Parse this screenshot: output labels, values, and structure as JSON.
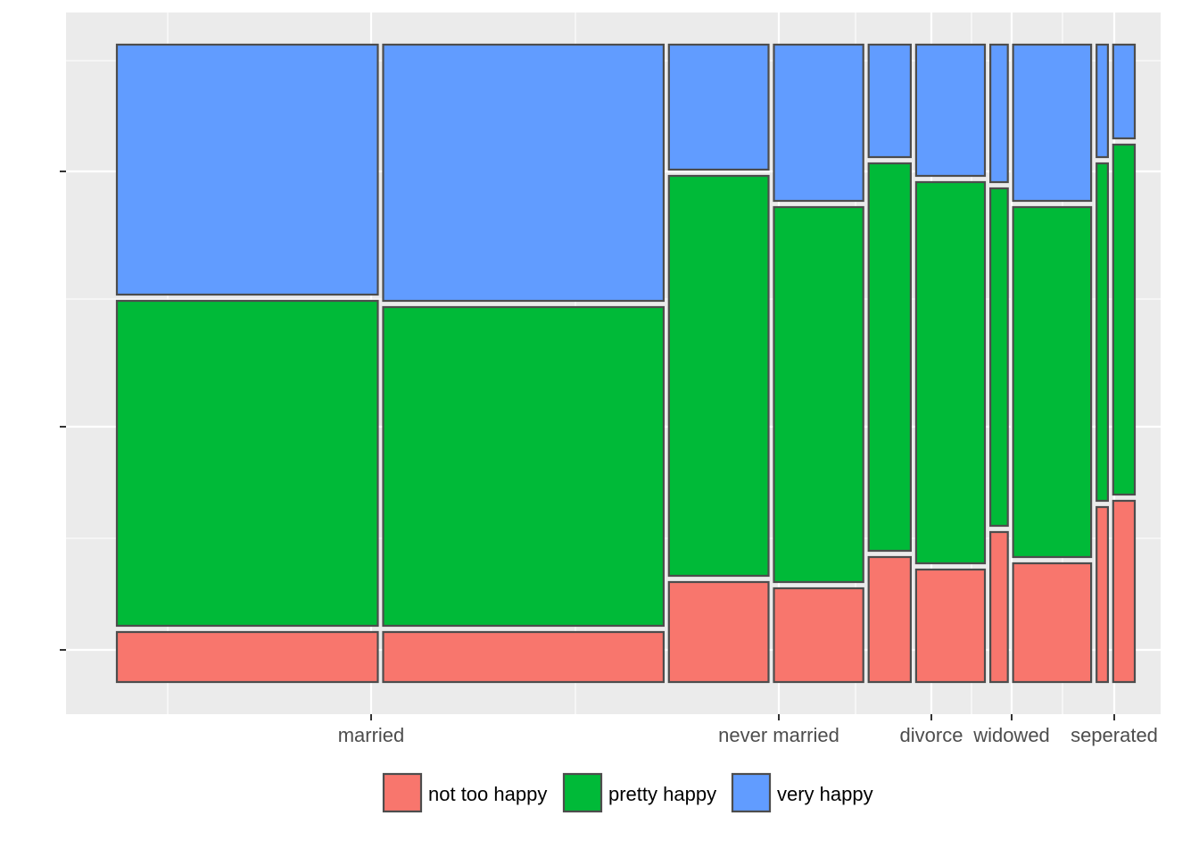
{
  "chart_data": {
    "type": "mosaic",
    "title": "",
    "xlabel": "",
    "ylabel": "",
    "x_tick_labels": [
      "married",
      "never married",
      "divorce",
      "widowed",
      "seperated"
    ],
    "y_tick_labels": [
      "",
      "",
      ""
    ],
    "grid": true,
    "legend_position": "bottom",
    "legend": [
      {
        "label": "not too happy",
        "color": "#F8766D"
      },
      {
        "label": "pretty happy",
        "color": "#00BA38"
      },
      {
        "label": "very happy",
        "color": "#619CFF"
      }
    ],
    "segments": [
      {
        "category": "married",
        "width_share": 0.254,
        "happiness": [
          0.08,
          0.52,
          0.4
        ]
      },
      {
        "category": "married",
        "width_share": 0.273,
        "happiness": [
          0.08,
          0.51,
          0.41
        ]
      },
      {
        "category": "never married",
        "width_share": 0.097,
        "happiness": [
          0.16,
          0.64,
          0.2
        ]
      },
      {
        "category": "never married",
        "width_share": 0.087,
        "happiness": [
          0.15,
          0.6,
          0.25
        ]
      },
      {
        "category": "divorce",
        "width_share": 0.041,
        "happiness": [
          0.2,
          0.62,
          0.18
        ]
      },
      {
        "category": "divorce",
        "width_share": 0.067,
        "happiness": [
          0.18,
          0.61,
          0.21
        ]
      },
      {
        "category": "widowed",
        "width_share": 0.017,
        "happiness": [
          0.24,
          0.54,
          0.22
        ]
      },
      {
        "category": "widowed",
        "width_share": 0.076,
        "happiness": [
          0.19,
          0.56,
          0.25
        ]
      },
      {
        "category": "seperated",
        "width_share": 0.011,
        "happiness": [
          0.28,
          0.54,
          0.18
        ]
      },
      {
        "category": "seperated",
        "width_share": 0.021,
        "happiness": [
          0.29,
          0.56,
          0.15
        ]
      }
    ]
  }
}
